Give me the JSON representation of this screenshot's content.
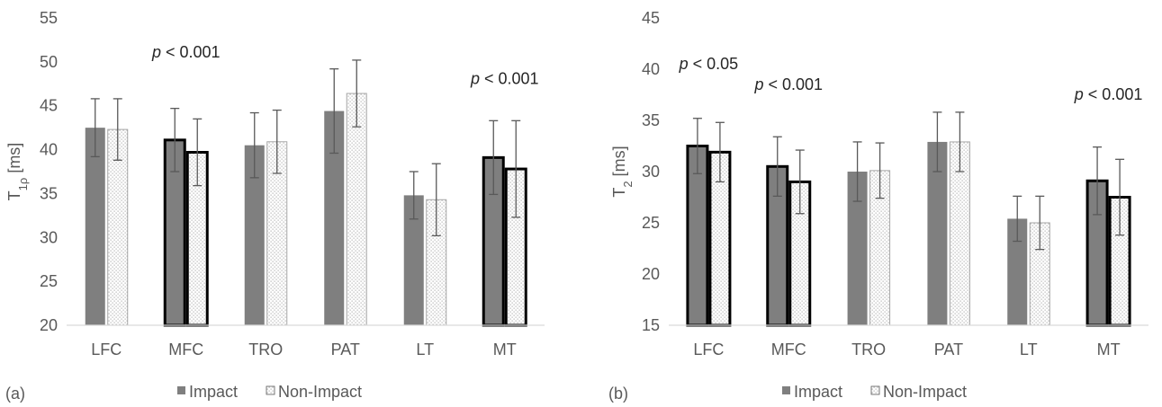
{
  "figure": {
    "legend": {
      "impact": "Impact",
      "non_impact": "Non-Impact"
    }
  },
  "colors": {
    "impact_fill": "#7f7f7f",
    "axis": "#d9d9d9",
    "text": "#595959",
    "p_text": "#262626",
    "error_bar": "#595959",
    "bold_outline": "#000000"
  },
  "chart_data": [
    {
      "type": "bar",
      "panel_label": "(a)",
      "ylabel_main": "T",
      "ylabel_sub": "1ρ",
      "ylabel_unit": " [ms]",
      "ylim": [
        20,
        55
      ],
      "yticks": [
        20,
        25,
        30,
        35,
        40,
        45,
        50,
        55
      ],
      "categories": [
        "LFC",
        "MFC",
        "TRO",
        "PAT",
        "LT",
        "MT"
      ],
      "significant": [
        false,
        true,
        false,
        false,
        false,
        true
      ],
      "series": [
        {
          "name": "Impact",
          "values": [
            42.5,
            41.1,
            40.5,
            44.4,
            34.8,
            39.1
          ],
          "errors": [
            3.3,
            3.6,
            3.7,
            4.8,
            2.7,
            4.2
          ]
        },
        {
          "name": "Non-Impact",
          "values": [
            42.3,
            39.7,
            40.9,
            46.4,
            34.3,
            37.8
          ],
          "errors": [
            3.5,
            3.8,
            3.6,
            3.8,
            4.1,
            5.5
          ]
        }
      ],
      "annotations": [
        {
          "text": "p < 0.001",
          "category": "MFC",
          "y": 50.5
        },
        {
          "text": "p < 0.001",
          "category": "MT",
          "y": 47.5
        }
      ]
    },
    {
      "type": "bar",
      "panel_label": "(b)",
      "ylabel_main": "T",
      "ylabel_sub": "2",
      "ylabel_unit": " [ms]",
      "ylim": [
        15,
        45
      ],
      "yticks": [
        15,
        20,
        25,
        30,
        35,
        40,
        45
      ],
      "categories": [
        "LFC",
        "MFC",
        "TRO",
        "PAT",
        "LT",
        "MT"
      ],
      "significant": [
        true,
        true,
        false,
        false,
        false,
        true
      ],
      "series": [
        {
          "name": "Impact",
          "values": [
            32.5,
            30.5,
            30.0,
            32.9,
            25.4,
            29.1
          ],
          "errors": [
            2.7,
            2.9,
            2.9,
            2.9,
            2.2,
            3.3
          ]
        },
        {
          "name": "Non-Impact",
          "values": [
            31.9,
            29.0,
            30.1,
            32.9,
            25.0,
            27.5
          ],
          "errors": [
            2.9,
            3.1,
            2.7,
            2.9,
            2.6,
            3.7
          ]
        }
      ],
      "annotations": [
        {
          "text": "p < 0.05",
          "category": "LFC",
          "y": 40.0
        },
        {
          "text": "p < 0.001",
          "category": "MFC",
          "y": 38.0
        },
        {
          "text": "p < 0.001",
          "category": "MT",
          "y": 37.0
        }
      ]
    }
  ]
}
